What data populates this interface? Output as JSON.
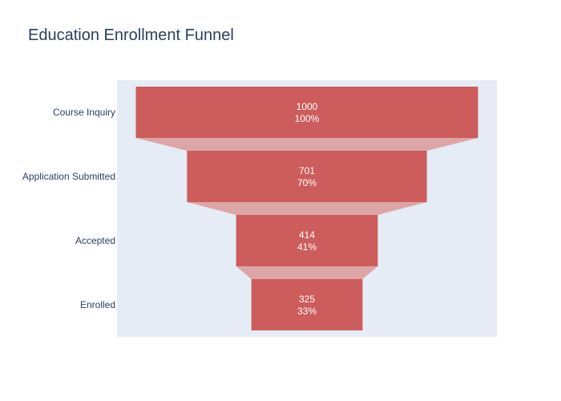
{
  "chart_data": {
    "type": "funnel",
    "title": "Education Enrollment Funnel",
    "categories": [
      "Course Inquiry",
      "Application Submitted",
      "Accepted",
      "Enrolled"
    ],
    "values": [
      1000,
      701,
      414,
      325
    ],
    "percent_labels": [
      "100%",
      "70%",
      "41%",
      "33%"
    ],
    "xlabel": "",
    "ylabel": "",
    "grid": false,
    "legend": "none",
    "colors": {
      "bar": "#cd5c5c",
      "connector": "#dea5a6",
      "plot_background": "#e5ecf6",
      "text": "#2a3f5f",
      "value_text": "#ffffff"
    }
  }
}
